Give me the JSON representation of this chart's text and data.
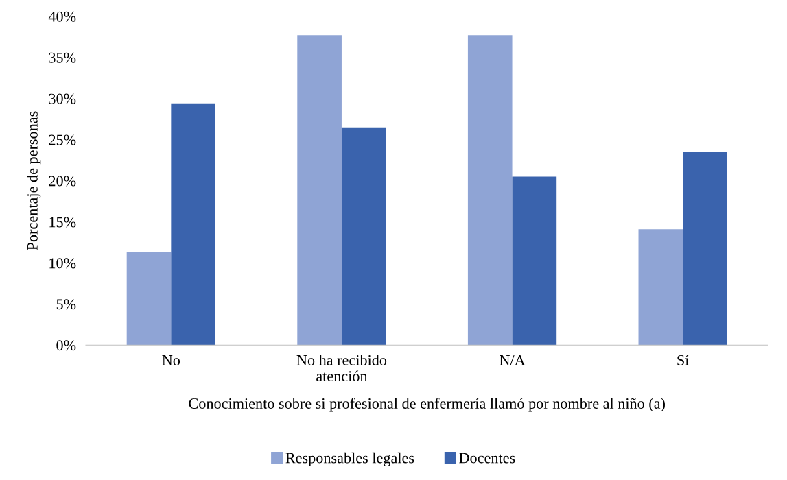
{
  "chart_data": {
    "type": "bar",
    "xlabel": "Conocimiento sobre si profesional de enfermería llamó por nombre al niño (a)",
    "ylabel": "Porcentaje de personas",
    "categories": [
      "No",
      "No ha recibido\natención",
      "N/A",
      "Sí"
    ],
    "series": [
      {
        "name": "Responsables legales",
        "color": "#8fa4d5",
        "values": [
          11.3,
          37.7,
          37.7,
          14.1
        ]
      },
      {
        "name": "Docentes",
        "color": "#3a63ad",
        "values": [
          29.4,
          26.5,
          20.5,
          23.5
        ]
      }
    ],
    "ylim": [
      0,
      40
    ],
    "yticks": [
      {
        "value": 0,
        "label": "0%"
      },
      {
        "value": 5,
        "label": "5%"
      },
      {
        "value": 10,
        "label": "10%"
      },
      {
        "value": 15,
        "label": "15%"
      },
      {
        "value": 20,
        "label": "20%"
      },
      {
        "value": 25,
        "label": "25%"
      },
      {
        "value": 30,
        "label": "30%"
      },
      {
        "value": 35,
        "label": "35%"
      },
      {
        "value": 40,
        "label": "40%"
      }
    ],
    "grid": false,
    "legend": "bottom"
  }
}
